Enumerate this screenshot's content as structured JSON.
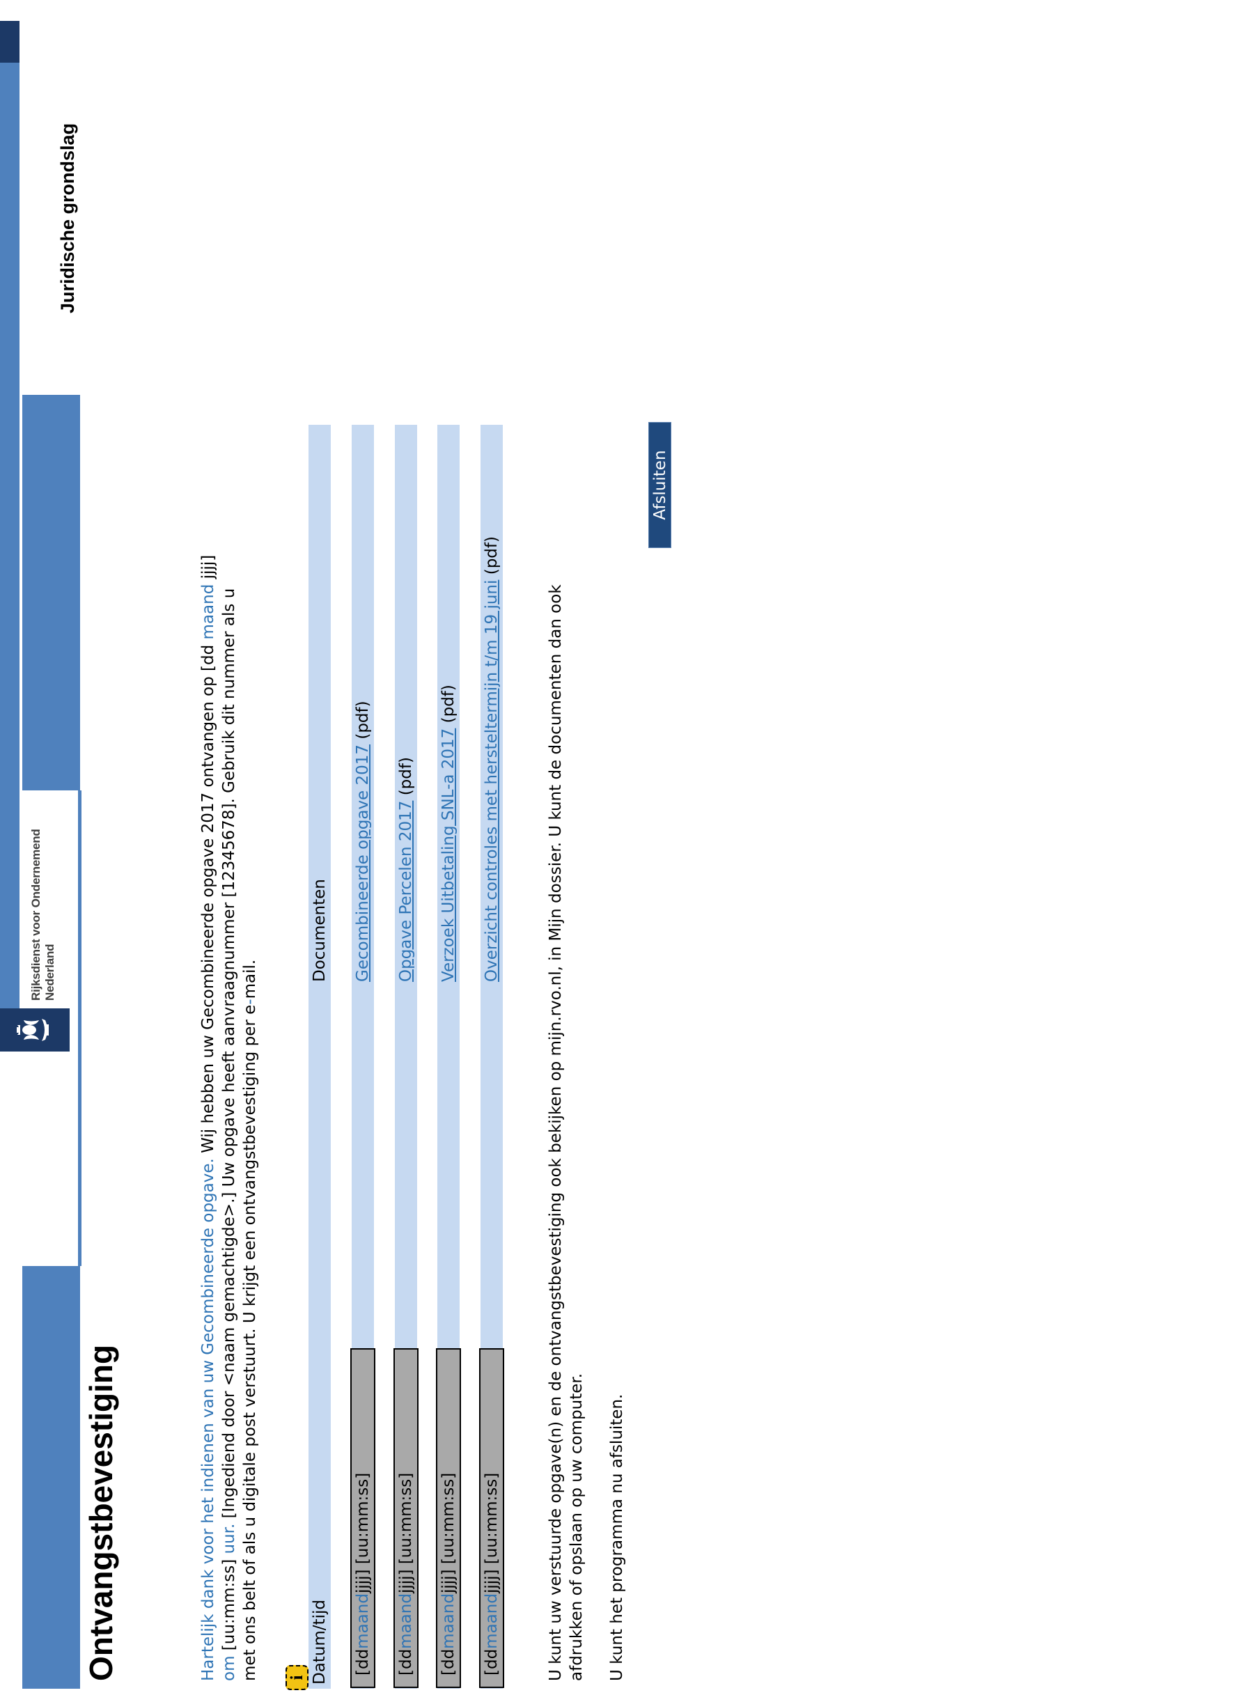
{
  "colors": {
    "accent": "#4f81bd",
    "stripe": "#c6d9f1",
    "navy": "#1f497d",
    "ribbon": "#1c3966",
    "link": "#2e74b5",
    "box_gray": "#a9a9a9",
    "info_yellow": "#f2c313"
  },
  "header": {
    "logo": {
      "line1": "Rijksdienst voor Ondernemend",
      "line2": "Nederland",
      "crest_icon": "rijksoverheid-crest-icon"
    },
    "legal_link": "Juridische grondslag"
  },
  "page_title": "Ontvangstbevestiging",
  "intro": {
    "lines": [
      [
        {
          "t": "Hartelijk dank voor het indienen van uw Gecombineerde opgave.",
          "s": "lnk"
        },
        {
          "t": " Wij hebben uw Gecombineerde opgave 2017 ontvangen op [dd ",
          "s": ""
        },
        {
          "t": "maand",
          "s": "lnk"
        },
        {
          "t": " jjjj]",
          "s": ""
        }
      ],
      [
        {
          "t": "om",
          "s": "lnk"
        },
        {
          "t": " [uu:mm:ss] ",
          "s": ""
        },
        {
          "t": "uur.",
          "s": "lnk"
        },
        {
          "t": " [Ingediend door <naam gemachtigde>.] Uw opgave heeft aanvraagnummer [12345678]. Gebruik dit nummer als u",
          "s": ""
        }
      ],
      [
        {
          "t": "met ons belt of als u digitale post verstuurt. U krijgt een ontvangstbevestiging per e",
          "s": ""
        },
        {
          "t": "-",
          "s": "lnk"
        },
        {
          "t": "mail.",
          "s": ""
        }
      ]
    ]
  },
  "info_icon": {
    "glyph": "i"
  },
  "table": {
    "columns": [
      "Datum/tijd",
      "Documenten"
    ],
    "rows": [
      {
        "datetime": [
          {
            "t": "[dd ",
            "s": ""
          },
          {
            "t": "maand",
            "s": "lnk"
          },
          {
            "t": " jjjj] [uu:mm:ss]",
            "s": ""
          }
        ],
        "doc_link": "Gecombineerde opgave 2017",
        "doc_suffix": " (pdf)"
      },
      {
        "datetime": [
          {
            "t": "[dd ",
            "s": ""
          },
          {
            "t": "maand",
            "s": "lnk"
          },
          {
            "t": " jjjj] [uu:mm:ss]",
            "s": ""
          }
        ],
        "doc_link": "Opgave Percelen 2017",
        "doc_suffix": " (pdf)"
      },
      {
        "datetime": [
          {
            "t": "[dd ",
            "s": ""
          },
          {
            "t": "maand",
            "s": "lnk"
          },
          {
            "t": " jjjj] [uu:mm:ss]",
            "s": ""
          }
        ],
        "doc_link": "Verzoek Uitbetaling SNL-a 2017",
        "doc_suffix": " (pdf)"
      },
      {
        "datetime": [
          {
            "t": "[dd ",
            "s": ""
          },
          {
            "t": "maand",
            "s": "lnk"
          },
          {
            "t": " jjjj] [uu:mm:ss]",
            "s": ""
          }
        ],
        "doc_link": "Overzicht controles met hersteltermijn t/m 19 juni",
        "doc_suffix": " (pdf)"
      }
    ]
  },
  "footer": {
    "para1_line1": "U kunt uw verstuurde opgave(n) en de ontvangstbevestiging ook bekijken op mijn.rvo.nl, in Mijn dossier. U kunt de documenten dan ook",
    "para1_line2": "afdrukken of opslaan op uw computer.",
    "para2": "U kunt het programma nu afsluiten.",
    "close_button": "Afsluiten"
  }
}
